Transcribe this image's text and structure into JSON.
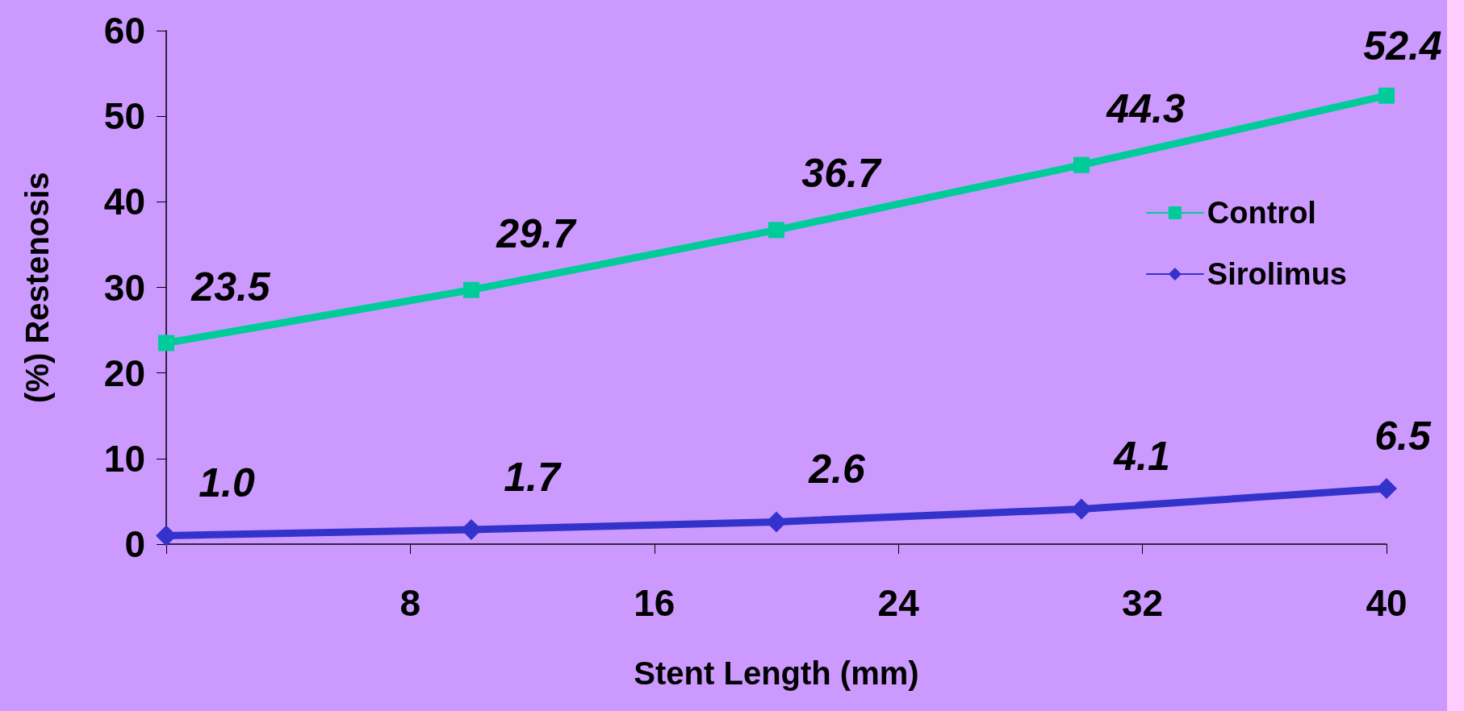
{
  "chart_data": {
    "type": "line",
    "xlabel": "Stent Length (mm)",
    "ylabel": "(%) Restenosis",
    "x": [
      0,
      10,
      20,
      30,
      40
    ],
    "xlim": [
      0,
      40
    ],
    "xticks": [
      {
        "value": 0,
        "label": null
      },
      8,
      16,
      24,
      32,
      40
    ],
    "ylim": [
      0,
      60
    ],
    "yticks": [
      0,
      10,
      20,
      30,
      40,
      50,
      60
    ],
    "series": [
      {
        "name": "Control",
        "color": "#00cc99",
        "marker": "square",
        "values": [
          23.5,
          29.7,
          36.7,
          44.3,
          52.4
        ],
        "value_labels": [
          "23.5",
          "29.7",
          "36.7",
          "44.3",
          "52.4"
        ]
      },
      {
        "name": "Sirolimus",
        "color": "#3333cc",
        "marker": "diamond",
        "values": [
          1.0,
          1.7,
          2.6,
          4.1,
          6.5
        ],
        "value_labels": [
          "1.0",
          "1.7",
          "2.6",
          "4.1",
          "6.5"
        ]
      }
    ],
    "grid": false,
    "legend": "right"
  }
}
